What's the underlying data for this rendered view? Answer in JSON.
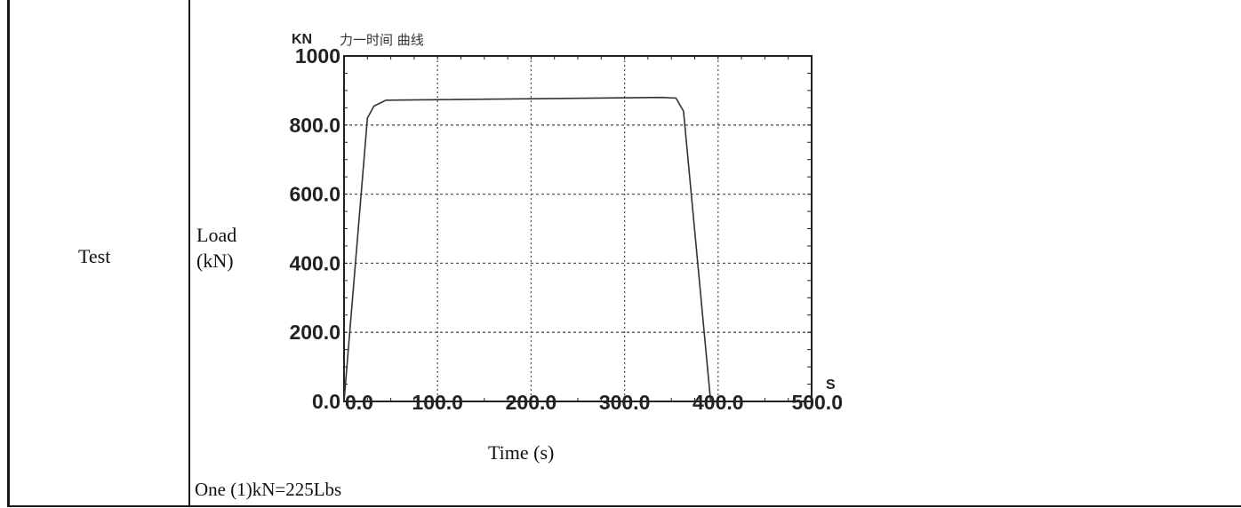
{
  "table": {
    "label_cell": "Test",
    "ylabel": "Load\n(kN)",
    "xlabel": "Time (s)",
    "conversion_note": "One (1)kN=225Lbs"
  },
  "chart_data": {
    "type": "line",
    "title": "力一时间 曲线",
    "y_unit": "KN",
    "x_unit": "S",
    "x_ticks": [
      "0.0",
      "100.0",
      "200.0",
      "300.0",
      "400.0",
      "500.0"
    ],
    "y_ticks": [
      "0.0",
      "200.0",
      "400.0",
      "600.0",
      "800.0",
      "1000"
    ],
    "xlim": [
      0,
      500
    ],
    "ylim": [
      0,
      1000
    ],
    "grid": true,
    "series": [
      {
        "x": [
          0,
          25,
          32,
          45,
          340,
          355,
          363,
          392
        ],
        "y": [
          0,
          820,
          855,
          872,
          880,
          878,
          840,
          0
        ]
      }
    ],
    "colors": {
      "line": "#333333",
      "grid": "#555555",
      "axis": "#222222"
    }
  }
}
